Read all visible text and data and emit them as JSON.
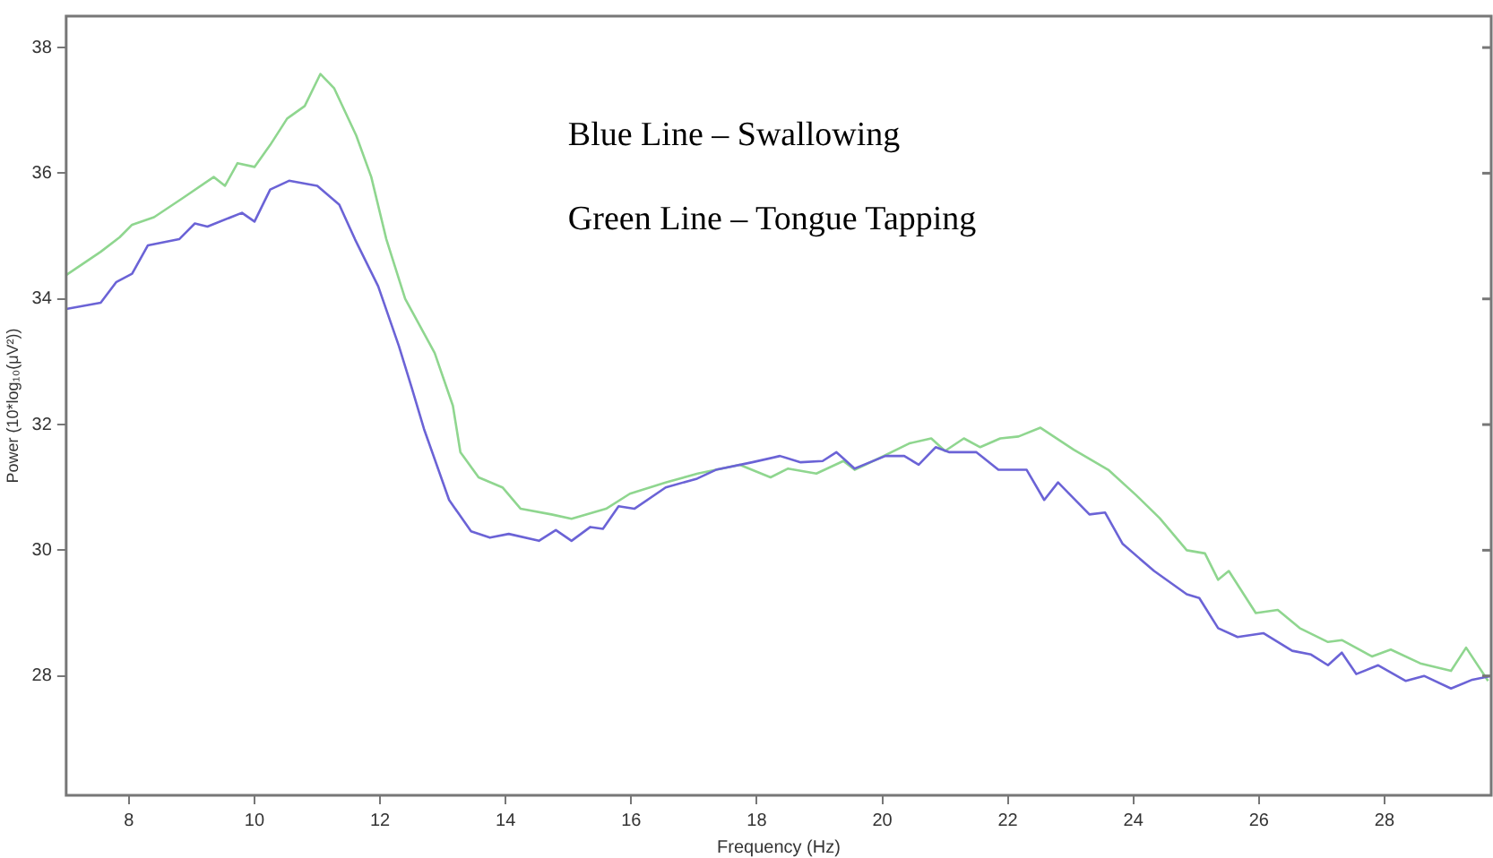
{
  "chart_data": {
    "type": "line",
    "xlabel": "Frequency (Hz)",
    "ylabel": "Power (10*log₁₀(μV²))",
    "annotations": [
      "Blue Line – Swallowing",
      "Green Line – Tongue Tapping"
    ],
    "xlim": [
      7,
      29.7
    ],
    "xticks": [
      8,
      10,
      12,
      14,
      16,
      18,
      20,
      22,
      24,
      26,
      28
    ],
    "ylim": [
      26.1,
      38.5
    ],
    "yticks": [
      28,
      30,
      32,
      34,
      36,
      38
    ],
    "marker": "none",
    "series": [
      {
        "color": "#6b63d6",
        "x": [
          7.0,
          7.55,
          7.8,
          8.05,
          8.3,
          8.8,
          9.05,
          9.25,
          9.8,
          10.0,
          10.25,
          10.55,
          11.0,
          11.35,
          11.6,
          11.97,
          12.3,
          12.5,
          12.7,
          13.1,
          13.45,
          13.75,
          14.05,
          14.53,
          14.8,
          15.05,
          15.35,
          15.55,
          15.8,
          16.05,
          16.55,
          17.05,
          17.35,
          17.93,
          18.37,
          18.7,
          19.05,
          19.27,
          19.56,
          20.05,
          20.35,
          20.58,
          20.85,
          21.07,
          21.5,
          21.85,
          22.3,
          22.58,
          22.8,
          23.3,
          23.55,
          23.83,
          24.33,
          24.85,
          25.05,
          25.35,
          25.66,
          26.07,
          26.53,
          26.83,
          27.1,
          27.32,
          27.55,
          27.9,
          28.34,
          28.63,
          29.06,
          29.4,
          29.7
        ],
        "values": [
          33.84,
          33.94,
          34.27,
          34.4,
          34.85,
          34.95,
          35.2,
          35.15,
          35.37,
          35.23,
          35.74,
          35.88,
          35.8,
          35.5,
          34.95,
          34.2,
          33.25,
          32.6,
          31.93,
          30.8,
          30.3,
          30.2,
          30.26,
          30.15,
          30.32,
          30.15,
          30.37,
          30.34,
          30.7,
          30.66,
          31.0,
          31.14,
          31.28,
          31.4,
          31.5,
          31.4,
          31.42,
          31.56,
          31.3,
          31.5,
          31.5,
          31.36,
          31.64,
          31.56,
          31.56,
          31.28,
          31.28,
          30.8,
          31.08,
          30.57,
          30.6,
          30.1,
          29.67,
          29.3,
          29.24,
          28.76,
          28.62,
          28.68,
          28.4,
          28.34,
          28.17,
          28.37,
          28.03,
          28.17,
          27.92,
          28.0,
          27.8,
          27.94,
          28.0
        ]
      },
      {
        "color": "#8fd68f",
        "x": [
          7.0,
          7.55,
          7.85,
          8.05,
          8.4,
          8.85,
          9.35,
          9.53,
          9.73,
          10.0,
          10.25,
          10.52,
          10.8,
          11.05,
          11.27,
          11.62,
          11.86,
          12.1,
          12.4,
          12.87,
          13.16,
          13.28,
          13.57,
          13.95,
          14.24,
          14.73,
          15.05,
          15.6,
          15.98,
          16.56,
          17.06,
          17.73,
          18.22,
          18.5,
          18.95,
          19.38,
          19.56,
          19.96,
          20.43,
          20.78,
          21.0,
          21.3,
          21.56,
          21.88,
          22.17,
          22.52,
          23.05,
          23.6,
          24.04,
          24.42,
          24.85,
          25.14,
          25.35,
          25.52,
          25.95,
          26.3,
          26.65,
          27.1,
          27.32,
          27.8,
          28.1,
          28.57,
          29.06,
          29.3,
          29.65
        ],
        "values": [
          34.38,
          34.75,
          34.98,
          35.18,
          35.3,
          35.6,
          35.94,
          35.8,
          36.16,
          36.1,
          36.45,
          36.87,
          37.07,
          37.58,
          37.35,
          36.6,
          35.94,
          34.95,
          34.0,
          33.14,
          32.3,
          31.56,
          31.16,
          31.0,
          30.66,
          30.57,
          30.5,
          30.66,
          30.9,
          31.08,
          31.22,
          31.36,
          31.16,
          31.3,
          31.22,
          31.42,
          31.28,
          31.47,
          31.7,
          31.78,
          31.58,
          31.78,
          31.64,
          31.78,
          31.81,
          31.95,
          31.6,
          31.28,
          30.88,
          30.51,
          30.0,
          29.95,
          29.53,
          29.67,
          29.0,
          29.05,
          28.76,
          28.54,
          28.57,
          28.31,
          28.42,
          28.2,
          28.08,
          28.45,
          27.92
        ]
      }
    ]
  }
}
